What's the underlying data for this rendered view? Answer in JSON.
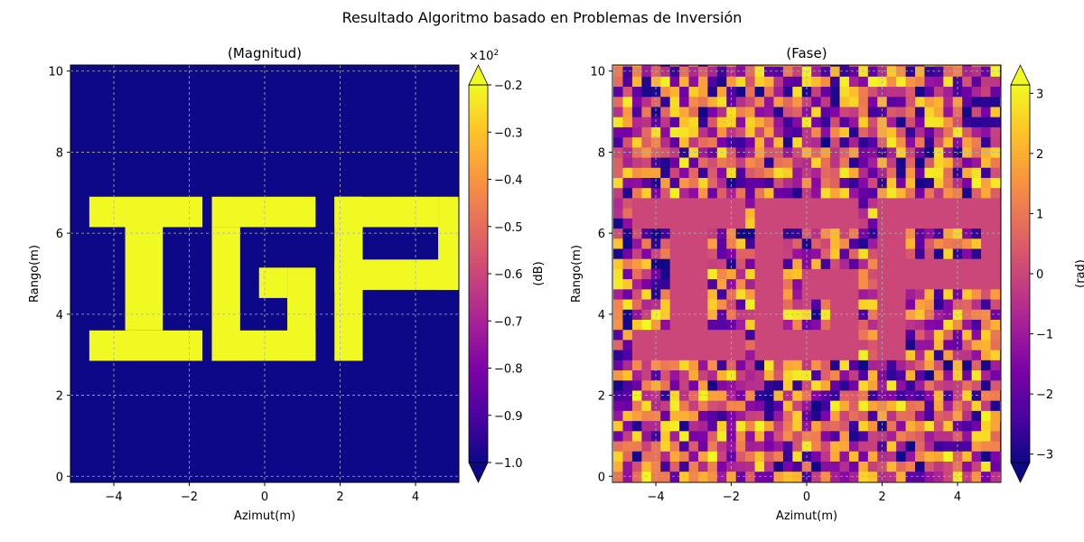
{
  "figure": {
    "suptitle": "Resultado Algoritmo basado en Problemas de Inversión"
  },
  "chart_data": [
    {
      "type": "heatmap",
      "title": "(Magnitud)",
      "xlabel": "Azimut(m)",
      "ylabel": "Rango(m)",
      "xlim": [
        -5.15,
        5.15
      ],
      "ylim": [
        -0.15,
        10.15
      ],
      "xticks": [
        -4,
        -2,
        0,
        2,
        4
      ],
      "xtick_labels": [
        "−4",
        "−2",
        "0",
        "2",
        "4"
      ],
      "yticks": [
        0,
        2,
        4,
        6,
        8,
        10
      ],
      "ytick_labels": [
        "0",
        "2",
        "4",
        "6",
        "8",
        "10"
      ],
      "grid": true,
      "colormap": "plasma",
      "description": "Background value −1.0×10² dB everywhere except the letters I, G, P at ≈ −0.2×10² dB",
      "background_value": -100,
      "letter_value": -20,
      "letters": [
        {
          "letter": "I",
          "rects_m": [
            [
              -4.65,
              6.15,
              3.0,
              0.75
            ],
            [
              -3.7,
              3.6,
              1.0,
              2.6
            ],
            [
              -4.65,
              2.85,
              3.0,
              0.75
            ]
          ]
        },
        {
          "letter": "G",
          "rects_m": [
            [
              -1.4,
              6.15,
              2.75,
              0.75
            ],
            [
              -1.4,
              2.85,
              0.75,
              3.3
            ],
            [
              -1.4,
              2.85,
              2.75,
              0.75
            ],
            [
              0.6,
              2.85,
              0.75,
              2.3
            ],
            [
              -0.15,
              4.4,
              0.75,
              0.75
            ]
          ]
        },
        {
          "letter": "P",
          "rects_m": [
            [
              1.85,
              2.85,
              0.75,
              4.05
            ],
            [
              1.85,
              6.15,
              2.75,
              0.75
            ],
            [
              4.6,
              4.6,
              0.75,
              2.3
            ],
            [
              1.85,
              4.6,
              3.5,
              0.75
            ]
          ]
        }
      ],
      "colorbar": {
        "label": "(dB)",
        "multiplier_label": "×10",
        "multiplier_exp": "2",
        "min": -1.0,
        "max": -0.2,
        "extend": "both",
        "ticks": [
          -1.0,
          -0.9,
          -0.8,
          -0.7,
          -0.6,
          -0.5,
          -0.4,
          -0.3,
          -0.2
        ],
        "tick_labels": [
          "−1.0",
          "−0.9",
          "−0.8",
          "−0.7",
          "−0.6",
          "−0.5",
          "−0.4",
          "−0.3",
          "−0.2"
        ]
      }
    },
    {
      "type": "heatmap",
      "title": "(Fase)",
      "xlabel": "Azimut(m)",
      "ylabel": "Rango(m)",
      "xlim": [
        -5.15,
        5.15
      ],
      "ylim": [
        -0.15,
        10.15
      ],
      "xticks": [
        -4,
        -2,
        0,
        2,
        4
      ],
      "xtick_labels": [
        "−4",
        "−2",
        "0",
        "2",
        "4"
      ],
      "yticks": [
        0,
        2,
        4,
        6,
        8,
        10
      ],
      "ytick_labels": [
        "0",
        "2",
        "4",
        "6",
        "8",
        "10"
      ],
      "grid": true,
      "colormap": "plasma",
      "description": "Random phase noise in [−3, 3] rad; letters I, G, P at constant 0 rad",
      "letter_value": 0,
      "noise_range": [
        -3.14,
        3.14
      ],
      "colorbar": {
        "label": "(rad)",
        "min": -3.14,
        "max": 3.14,
        "extend": "both",
        "ticks": [
          -3,
          -2,
          -1,
          0,
          1,
          2,
          3
        ],
        "tick_labels": [
          "−3",
          "−2",
          "−1",
          "0",
          "1",
          "2",
          "3"
        ]
      }
    }
  ]
}
